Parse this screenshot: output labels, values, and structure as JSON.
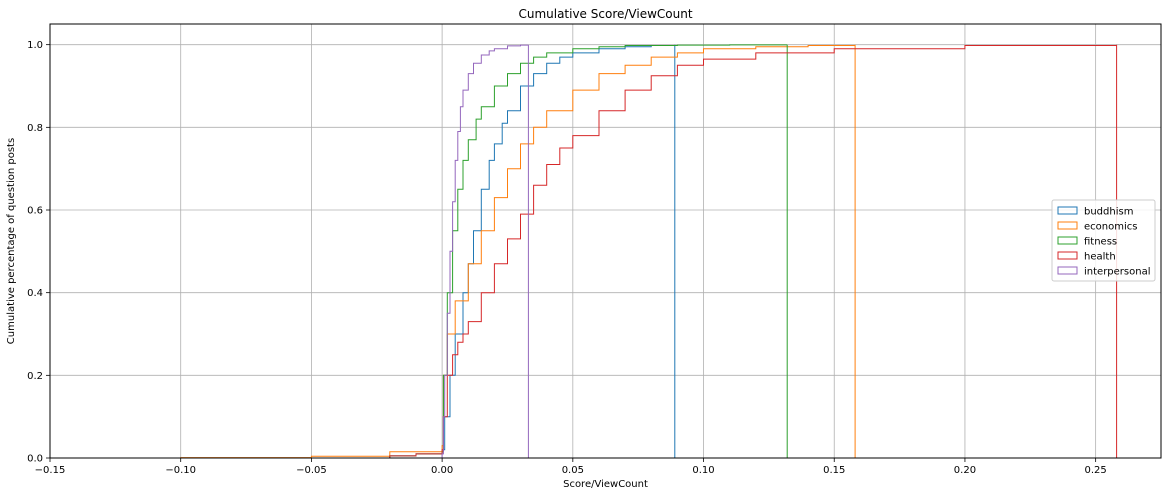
{
  "chart_data": {
    "type": "line",
    "title": "Cumulative Score/ViewCount",
    "xlabel": "Score/ViewCount",
    "ylabel": "Cumulative percentage of question posts",
    "xlim": [
      -0.15,
      0.275
    ],
    "ylim": [
      0.0,
      1.05
    ],
    "xticks": [
      -0.15,
      -0.1,
      -0.05,
      0.0,
      0.05,
      0.1,
      0.15,
      0.2,
      0.25
    ],
    "xtick_labels": [
      "−0.15",
      "−0.10",
      "−0.05",
      "0.00",
      "0.05",
      "0.10",
      "0.15",
      "0.20",
      "0.25"
    ],
    "yticks": [
      0.0,
      0.2,
      0.4,
      0.6,
      0.8,
      1.0
    ],
    "ytick_labels": [
      "0.0",
      "0.2",
      "0.4",
      "0.6",
      "0.8",
      "1.0"
    ],
    "grid": true,
    "legend_position": "center-right",
    "series": [
      {
        "name": "buddhism",
        "color": "#1f77b4",
        "x": [
          -0.05,
          -0.02,
          -0.01,
          0.0,
          0.001,
          0.003,
          0.005,
          0.008,
          0.01,
          0.012,
          0.015,
          0.018,
          0.02,
          0.023,
          0.025,
          0.03,
          0.035,
          0.04,
          0.045,
          0.05,
          0.06,
          0.07,
          0.08,
          0.089
        ],
        "y": [
          0.0,
          0.005,
          0.01,
          0.02,
          0.1,
          0.2,
          0.3,
          0.4,
          0.47,
          0.55,
          0.65,
          0.72,
          0.76,
          0.81,
          0.84,
          0.9,
          0.93,
          0.955,
          0.97,
          0.98,
          0.99,
          0.995,
          0.998,
          1.0
        ]
      },
      {
        "name": "economics",
        "color": "#ff7f0e",
        "x": [
          -0.135,
          -0.1,
          -0.05,
          -0.02,
          0.0,
          0.0005,
          0.002,
          0.005,
          0.01,
          0.015,
          0.02,
          0.025,
          0.03,
          0.035,
          0.04,
          0.05,
          0.06,
          0.07,
          0.08,
          0.09,
          0.1,
          0.12,
          0.14,
          0.158
        ],
        "y": [
          0.0,
          0.001,
          0.004,
          0.015,
          0.03,
          0.2,
          0.3,
          0.38,
          0.47,
          0.55,
          0.63,
          0.7,
          0.76,
          0.8,
          0.84,
          0.89,
          0.93,
          0.95,
          0.97,
          0.98,
          0.99,
          0.995,
          0.998,
          1.0
        ]
      },
      {
        "name": "fitness",
        "color": "#2ca02c",
        "x": [
          -0.05,
          -0.02,
          -0.01,
          0.0,
          0.0005,
          0.002,
          0.004,
          0.006,
          0.008,
          0.01,
          0.013,
          0.015,
          0.02,
          0.025,
          0.03,
          0.035,
          0.04,
          0.05,
          0.06,
          0.07,
          0.09,
          0.11,
          0.132
        ],
        "y": [
          0.0,
          0.005,
          0.01,
          0.015,
          0.2,
          0.4,
          0.55,
          0.65,
          0.72,
          0.77,
          0.82,
          0.85,
          0.9,
          0.93,
          0.955,
          0.97,
          0.98,
          0.99,
          0.995,
          0.998,
          0.999,
          0.9995,
          1.0
        ]
      },
      {
        "name": "health",
        "color": "#d62728",
        "x": [
          -0.05,
          -0.02,
          -0.01,
          0.0,
          0.0005,
          0.002,
          0.004,
          0.006,
          0.008,
          0.01,
          0.015,
          0.02,
          0.025,
          0.03,
          0.035,
          0.04,
          0.045,
          0.05,
          0.06,
          0.07,
          0.08,
          0.09,
          0.1,
          0.12,
          0.15,
          0.2,
          0.258
        ],
        "y": [
          0.0,
          0.005,
          0.01,
          0.02,
          0.1,
          0.2,
          0.25,
          0.28,
          0.3,
          0.33,
          0.4,
          0.47,
          0.53,
          0.59,
          0.66,
          0.71,
          0.75,
          0.78,
          0.84,
          0.89,
          0.925,
          0.95,
          0.965,
          0.98,
          0.99,
          0.998,
          1.0
        ]
      },
      {
        "name": "interpersonal",
        "color": "#9467bd",
        "x": [
          -0.01,
          0.0,
          0.0005,
          0.001,
          0.002,
          0.003,
          0.004,
          0.005,
          0.006,
          0.007,
          0.008,
          0.01,
          0.012,
          0.015,
          0.018,
          0.02,
          0.025,
          0.03,
          0.033
        ],
        "y": [
          0.0,
          0.01,
          0.1,
          0.2,
          0.35,
          0.5,
          0.62,
          0.72,
          0.79,
          0.85,
          0.89,
          0.93,
          0.955,
          0.975,
          0.985,
          0.99,
          0.997,
          0.999,
          1.0
        ]
      }
    ]
  }
}
